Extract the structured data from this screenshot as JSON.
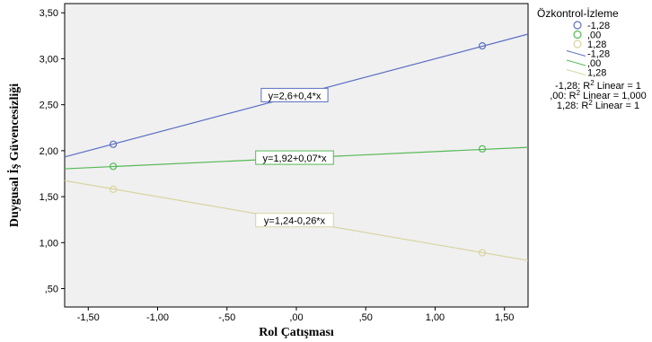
{
  "chart_data": {
    "type": "line",
    "xlabel": "Rol Çatışması",
    "ylabel": "Duygusal İş Güvencesizliği",
    "xlim": [
      -1.67,
      1.67
    ],
    "ylim": [
      0.3,
      3.6
    ],
    "x_ticks": [
      "-1,50",
      "-1,00",
      "-,50",
      ",00",
      ",50",
      "1,00",
      "1,50"
    ],
    "x_tick_values": [
      -1.5,
      -1.0,
      -0.5,
      0.0,
      0.5,
      1.0,
      1.5
    ],
    "y_ticks": [
      ",50",
      "1,00",
      "1,50",
      "2,00",
      "2,50",
      "3,00",
      "3,50"
    ],
    "y_tick_values": [
      0.5,
      1.0,
      1.5,
      2.0,
      2.5,
      3.0,
      3.5
    ],
    "grid": false,
    "legend_title": "Özkontrol-İzleme",
    "series": [
      {
        "name": "-1,28",
        "color": "#5b6fc4",
        "intercept": 2.6,
        "slope": 0.4,
        "points_x": [
          -1.32,
          1.34
        ],
        "points_y": [
          2.07,
          3.14
        ],
        "equation": "y=2,6+0,4*x"
      },
      {
        "name": ",00",
        "color": "#55b855",
        "intercept": 1.92,
        "slope": 0.07,
        "points_x": [
          -1.32,
          1.34
        ],
        "points_y": [
          1.83,
          2.02
        ],
        "equation": "y=1,92+0,07*x"
      },
      {
        "name": "1,28",
        "color": "#d8d4a0",
        "intercept": 1.24,
        "slope": -0.26,
        "points_x": [
          -1.32,
          1.34
        ],
        "points_y": [
          1.58,
          0.89
        ],
        "equation": "y=1,24-0,26*x"
      }
    ],
    "r2_notes": [
      {
        "prefix": "-1,28: R",
        "sup": "2",
        "suffix": " Linear = 1"
      },
      {
        "prefix": ",00: R",
        "sup": "2",
        "suffix": " Linear = 1,000"
      },
      {
        "prefix": "1,28: R",
        "sup": "2",
        "suffix": " Linear = 1"
      }
    ]
  }
}
